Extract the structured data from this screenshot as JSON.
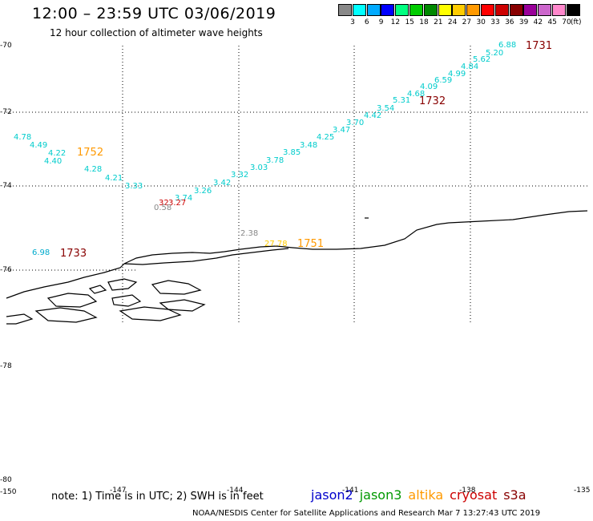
{
  "header": {
    "title": "12:00 – 23:59 UTC 03/06/2019",
    "subtitle": "12 hour collection of altimeter wave heights"
  },
  "colorbar": {
    "swatches": [
      "#888888",
      "#00ffff",
      "#00aaff",
      "#0000ff",
      "#00ff80",
      "#00cc00",
      "#008800",
      "#ffff00",
      "#ffcc00",
      "#ff9900",
      "#ff0000",
      "#cc0000",
      "#880000",
      "#990099",
      "#cc66cc",
      "#ff88cc",
      "#000000"
    ],
    "labels": [
      "3",
      "6",
      "9",
      "12",
      "15",
      "18",
      "21",
      "24",
      "27",
      "30",
      "33",
      "36",
      "39",
      "42",
      "45",
      "70"
    ],
    "unit": "(ft)"
  },
  "axes": {
    "lat_labels": [
      "-70",
      "-72",
      "-74",
      "-76",
      "-78",
      "-80"
    ],
    "lon_labels": [
      "-150",
      "-147",
      "-144",
      "-141",
      "-138",
      "-135"
    ]
  },
  "observations": [
    {
      "v": "6.88",
      "c": "#00cccc"
    },
    {
      "v": "5.20",
      "c": "#00cccc"
    },
    {
      "v": "5.62",
      "c": "#00cccc"
    },
    {
      "v": "4.84",
      "c": "#00cccc"
    },
    {
      "v": "4.99",
      "c": "#00cccc"
    },
    {
      "v": "6.59",
      "c": "#00cccc"
    },
    {
      "v": "4.09",
      "c": "#00cccc"
    },
    {
      "v": "4.68",
      "c": "#00cccc"
    },
    {
      "v": "5.31",
      "c": "#00cccc"
    },
    {
      "v": "3.54",
      "c": "#00cccc"
    },
    {
      "v": "4.42",
      "c": "#00cccc"
    },
    {
      "v": "3.70",
      "c": "#00cccc"
    },
    {
      "v": "3.47",
      "c": "#00cccc"
    },
    {
      "v": "4.25",
      "c": "#00cccc"
    },
    {
      "v": "3.48",
      "c": "#00cccc"
    },
    {
      "v": "3.85",
      "c": "#00cccc"
    },
    {
      "v": "3.78",
      "c": "#00cccc"
    },
    {
      "v": "3.03",
      "c": "#00cccc"
    },
    {
      "v": "3.32",
      "c": "#00cccc"
    },
    {
      "v": "3.42",
      "c": "#00cccc"
    },
    {
      "v": "3.26",
      "c": "#00cccc"
    },
    {
      "v": "3.74",
      "c": "#00cccc"
    },
    {
      "v": "3.27",
      "c": "#cc0000"
    },
    {
      "v": "32",
      "c": "#cc0000"
    },
    {
      "v": "0.58",
      "c": "#888888"
    },
    {
      "v": "4.78",
      "c": "#00cccc"
    },
    {
      "v": "4.49",
      "c": "#00cccc"
    },
    {
      "v": "4.22",
      "c": "#00cccc"
    },
    {
      "v": "4.40",
      "c": "#00cccc"
    },
    {
      "v": "4.28",
      "c": "#00cccc"
    },
    {
      "v": "4.21",
      "c": "#00cccc"
    },
    {
      "v": "3.33",
      "c": "#00cccc"
    },
    {
      "v": "2.38",
      "c": "#888888"
    },
    {
      "v": "27.78",
      "c": "#ffcc00"
    },
    {
      "v": "6.98",
      "c": "#00aacc"
    }
  ],
  "time_labels": [
    {
      "v": "1731",
      "c": "#880000"
    },
    {
      "v": "1732",
      "c": "#880000"
    },
    {
      "v": "1752",
      "c": "#ff9900"
    },
    {
      "v": "1751",
      "c": "#ff9900"
    },
    {
      "v": "1733",
      "c": "#880000"
    }
  ],
  "footer": {
    "note": "note: 1) Time is in UTC; 2) SWH is in feet",
    "legend": [
      {
        "name": "jason2",
        "color": "#0000cc"
      },
      {
        "name": "jason3",
        "color": "#009900"
      },
      {
        "name": "altika",
        "color": "#ff9900"
      },
      {
        "name": "cryosat",
        "color": "#cc0000"
      },
      {
        "name": "s3a",
        "color": "#880000"
      }
    ],
    "credit": "NOAA/NESDIS Center for Satellite Applications and Research    Mar  7 13:27:43 UTC 2019"
  }
}
